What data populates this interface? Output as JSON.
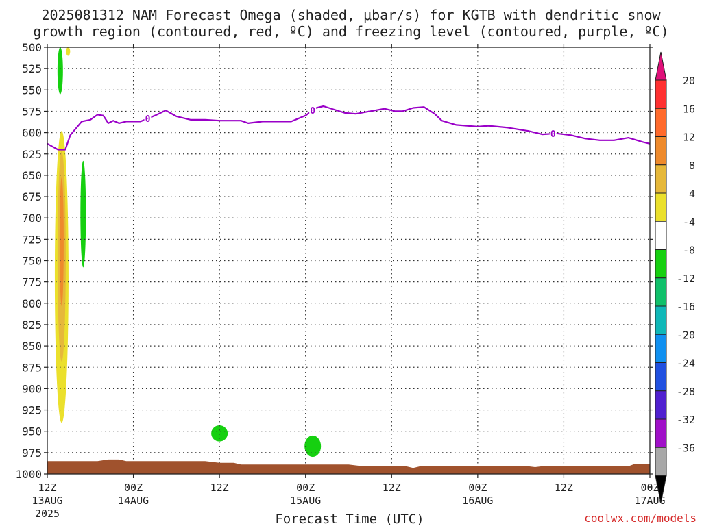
{
  "chart_data": {
    "type": "line",
    "title_line1": "2025081312 NAM Forecast Omega (shaded, μbar/s) for KGTB with dendritic snow",
    "title_line2": "growth region (contoured, red, ºC) and freezing level (contoured, purple, ºC)",
    "xlabel": "Forecast Time (UTC)",
    "credit": "coolwx.com/models",
    "y_axis": {
      "reversed": true,
      "ylim": [
        1000,
        500
      ],
      "ticks": [
        500,
        525,
        550,
        575,
        600,
        625,
        650,
        675,
        700,
        725,
        750,
        775,
        800,
        825,
        850,
        875,
        900,
        925,
        950,
        975,
        1000
      ],
      "grid": true
    },
    "x_axis": {
      "xlim_hours": [
        0,
        84
      ],
      "ticks": [
        {
          "hour": 0,
          "label": "12Z",
          "sub": "13AUG",
          "sub2": "2025"
        },
        {
          "hour": 12,
          "label": "00Z",
          "sub": "14AUG",
          "sub2": ""
        },
        {
          "hour": 24,
          "label": "12Z",
          "sub": "",
          "sub2": ""
        },
        {
          "hour": 36,
          "label": "00Z",
          "sub": "15AUG",
          "sub2": ""
        },
        {
          "hour": 48,
          "label": "12Z",
          "sub": "",
          "sub2": ""
        },
        {
          "hour": 60,
          "label": "00Z",
          "sub": "16AUG",
          "sub2": ""
        },
        {
          "hour": 72,
          "label": "12Z",
          "sub": "",
          "sub2": ""
        },
        {
          "hour": 84,
          "label": "00Z",
          "sub": "17AUG",
          "sub2": ""
        }
      ],
      "grid": true
    },
    "freezing_level": {
      "label": "0",
      "color": "#9a00c8",
      "points": [
        [
          0,
          613
        ],
        [
          1.5,
          620
        ],
        [
          2.5,
          620
        ],
        [
          3.2,
          603
        ],
        [
          4.8,
          587
        ],
        [
          6,
          585
        ],
        [
          7,
          579
        ],
        [
          7.8,
          580
        ],
        [
          8.5,
          589
        ],
        [
          9.2,
          586
        ],
        [
          10,
          589
        ],
        [
          11,
          587
        ],
        [
          13,
          587
        ],
        [
          15,
          580
        ],
        [
          16.5,
          574
        ],
        [
          18,
          581
        ],
        [
          20,
          585
        ],
        [
          22,
          585
        ],
        [
          24,
          586
        ],
        [
          27,
          586
        ],
        [
          28,
          589
        ],
        [
          30,
          587
        ],
        [
          33,
          587
        ],
        [
          34,
          587
        ],
        [
          36,
          580
        ],
        [
          37.5,
          571
        ],
        [
          38.5,
          569
        ],
        [
          40,
          573
        ],
        [
          41.5,
          577
        ],
        [
          43,
          578
        ],
        [
          45,
          575
        ],
        [
          47,
          572
        ],
        [
          48.5,
          575
        ],
        [
          49.5,
          575
        ],
        [
          51,
          571
        ],
        [
          52.5,
          570
        ],
        [
          54,
          578
        ],
        [
          55,
          586
        ],
        [
          57,
          591
        ],
        [
          60,
          593
        ],
        [
          61.5,
          592
        ],
        [
          64,
          594
        ],
        [
          67,
          598
        ],
        [
          69,
          602
        ],
        [
          71,
          601
        ],
        [
          73,
          603
        ],
        [
          75,
          607
        ],
        [
          77,
          609
        ],
        [
          79,
          609
        ],
        [
          81,
          606
        ],
        [
          83,
          611
        ],
        [
          84,
          613
        ]
      ],
      "labels_at_hours": [
        14,
        37,
        70.5
      ]
    },
    "omega_positive": [
      {
        "hour": 2,
        "p_top": 598,
        "p_bottom": 940,
        "max": 12
      },
      {
        "hour": 2.9,
        "p_top": 500,
        "p_bottom": 510,
        "max": 4
      }
    ],
    "omega_negative": [
      {
        "hour": 1.8,
        "p_top": 500,
        "p_bottom": 555,
        "min": -8
      },
      {
        "hour": 5,
        "p_top": 633,
        "p_bottom": 758,
        "min": -8
      },
      {
        "hour": 24,
        "p_top": 943,
        "p_bottom": 962,
        "min": -8
      },
      {
        "hour": 37,
        "p_top": 955,
        "p_bottom": 980,
        "min": -8
      }
    ],
    "terrain": {
      "color": "#a0522d",
      "points": [
        [
          0,
          985
        ],
        [
          7,
          985
        ],
        [
          8.5,
          983
        ],
        [
          10,
          983
        ],
        [
          11,
          985
        ],
        [
          22,
          985
        ],
        [
          24,
          987
        ],
        [
          26,
          987
        ],
        [
          27,
          989
        ],
        [
          35,
          989
        ],
        [
          42,
          989
        ],
        [
          44,
          991
        ],
        [
          50,
          991
        ],
        [
          51,
          993
        ],
        [
          52,
          991
        ],
        [
          67,
          991
        ],
        [
          68,
          992
        ],
        [
          69,
          991
        ],
        [
          81,
          991
        ],
        [
          82,
          988
        ],
        [
          84,
          988
        ]
      ]
    },
    "colorbar": {
      "labels": [
        "20",
        "16",
        "12",
        "8",
        "4",
        "-4",
        "-8",
        "-12",
        "-16",
        "-20",
        "-24",
        "-28",
        "-32",
        "-36"
      ],
      "bins": [
        {
          "color": "#ff3030"
        },
        {
          "color": "#ff6a2c"
        },
        {
          "color": "#ee8a2c"
        },
        {
          "color": "#e6b83a"
        },
        {
          "color": "#ebe02c"
        },
        {
          "color": "#ffffff"
        },
        {
          "color": "#16d010"
        },
        {
          "color": "#10c06a"
        },
        {
          "color": "#10b8b8"
        },
        {
          "color": "#1090f0"
        },
        {
          "color": "#2050e0"
        },
        {
          "color": "#5020d0"
        },
        {
          "color": "#a010c8"
        },
        {
          "color": "#a8a8a8"
        }
      ],
      "top_color": "#e0107a",
      "bottom_color": "#000000"
    }
  }
}
